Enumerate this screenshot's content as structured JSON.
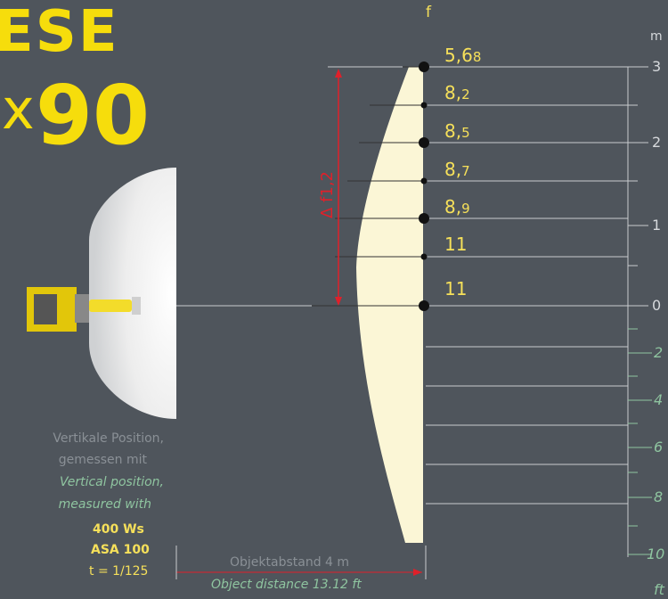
{
  "title": {
    "line1": "ESE",
    "line2_x": "x",
    "line2_num": "90"
  },
  "f_header": "f",
  "unit_m": "m",
  "unit_ft": "ft",
  "delta_label": "Δ f1,2",
  "apertures": [
    {
      "main": "5,6",
      "small": "8"
    },
    {
      "main": "8,",
      "small": "2"
    },
    {
      "main": "8,",
      "small": "5"
    },
    {
      "main": "8,",
      "small": "7"
    },
    {
      "main": "8,",
      "small": "9"
    },
    {
      "main": "11",
      "small": ""
    },
    {
      "main": "11",
      "small": ""
    }
  ],
  "m_ticks": [
    "3",
    "2",
    "1",
    "0"
  ],
  "ft_ticks": [
    "2",
    "4",
    "6",
    "8",
    "10"
  ],
  "caption": {
    "de_line1": "Vertikale Position,",
    "de_line2": "gemessen mit",
    "en_line1": "Vertical position,",
    "en_line2": "measured with",
    "energy": "400 Ws",
    "iso": "ASA 100",
    "time": "t = 1/125"
  },
  "distance": {
    "de": "Objektabstand  4 m",
    "en": "Object distance 13.12 ft"
  },
  "colors": {
    "yellow": "#f6dd0c",
    "red": "#e0202a",
    "green": "#8fc5a0",
    "beam": "#fbf6d6"
  }
}
